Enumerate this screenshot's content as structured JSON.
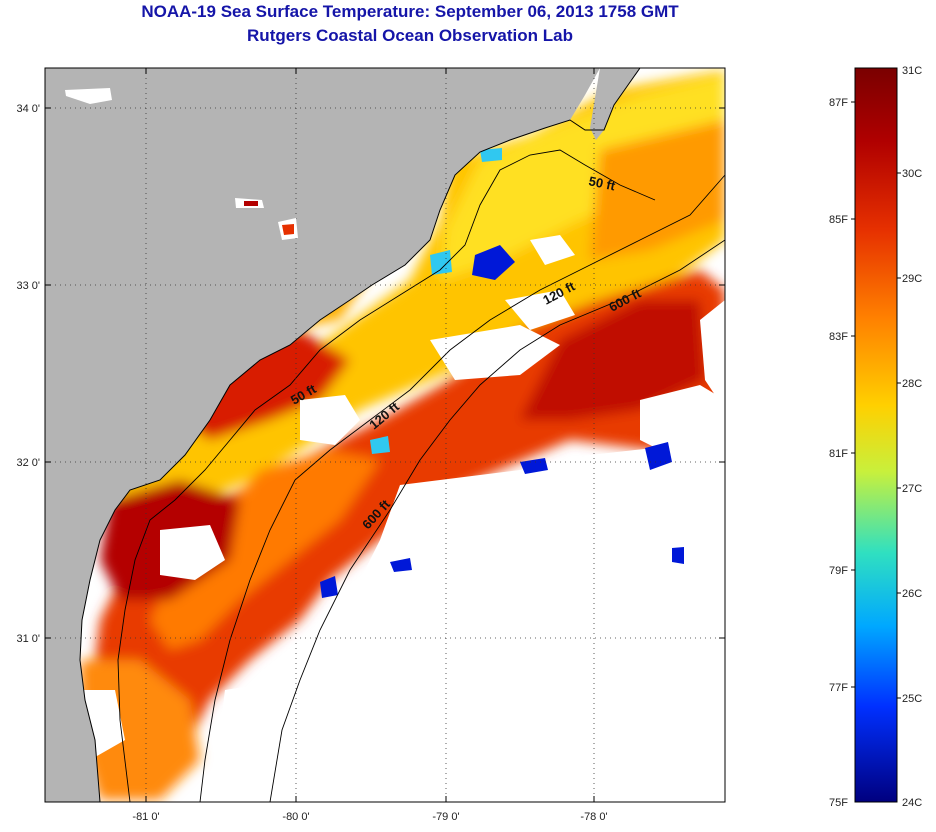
{
  "header": {
    "title": "NOAA-19 Sea Surface Temperature:  September 06, 2013 1758 GMT",
    "subtitle": "Rutgers Coastal Ocean Observation Lab"
  },
  "map": {
    "lat_labels": [
      "34 0'",
      "33 0'",
      "32 0'",
      "31 0'"
    ],
    "lon_labels": [
      "-81 0'",
      "-80 0'",
      "-79 0'",
      "-78 0'"
    ],
    "isobaths": [
      "50 ft",
      "50 ft",
      "120 ft",
      "120 ft",
      "600 ft",
      "600 ft"
    ]
  },
  "colorbar": {
    "celsius": [
      "31C",
      "30C",
      "29C",
      "28C",
      "27C",
      "26C",
      "25C",
      "24C"
    ],
    "fahrenheit": [
      "87F",
      "85F",
      "83F",
      "81F",
      "79F",
      "77F",
      "75F"
    ]
  },
  "colors": {
    "title": "#1515a8",
    "land": "#b4b4b4",
    "no_data": "#ffffff",
    "hot": "#7a0000",
    "cold": "#00007f"
  }
}
